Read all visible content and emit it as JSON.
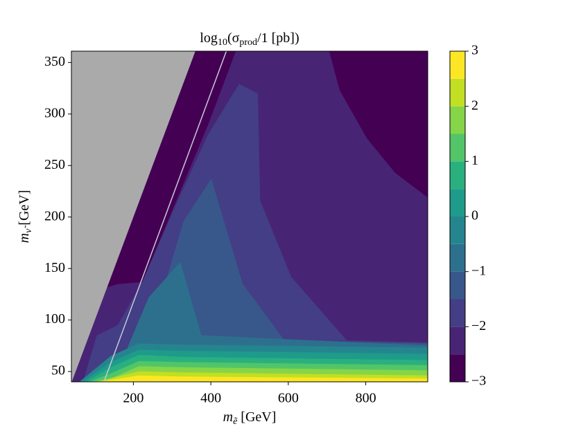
{
  "chart_data": {
    "type": "contourf",
    "title_parts": [
      "log",
      "10",
      "(σ",
      "prod",
      "/1 [pb])"
    ],
    "xlabel_parts": [
      "m",
      "ẽ",
      " [GeV]"
    ],
    "ylabel_parts": [
      "m",
      "ν̃",
      " [GeV]"
    ],
    "xlim": [
      40,
      960
    ],
    "ylim": [
      40,
      361
    ],
    "xticks": [
      200,
      400,
      600,
      800
    ],
    "yticks": [
      50,
      100,
      150,
      200,
      250,
      300,
      350
    ],
    "levels": [
      -3,
      -2.5,
      -2,
      -1.5,
      -1,
      -0.5,
      0,
      0.5,
      1,
      1.5,
      2,
      2.5,
      3
    ],
    "colors": [
      "#440154",
      "#482475",
      "#433e85",
      "#38588c",
      "#2d708e",
      "#25858e",
      "#1e9b8a",
      "#2ab07f",
      "#52c569",
      "#86d549",
      "#c2df23",
      "#fde725"
    ],
    "cticks": [
      {
        "value": -3,
        "label": "−3"
      },
      {
        "value": -2,
        "label": "−2"
      },
      {
        "value": -1,
        "label": "−1"
      },
      0,
      1,
      2,
      3
    ],
    "regions": [
      {
        "range": [
          -2.5,
          -2
        ],
        "points": [
          [
            41,
            40
          ],
          [
            360,
            361
          ],
          [
            960,
            361
          ],
          [
            960,
            40
          ]
        ]
      },
      {
        "range": [
          -3,
          -2.5
        ],
        "points": [
          [
            360,
            361
          ],
          [
            464,
            361
          ],
          [
            393,
            290
          ],
          [
            303,
            209
          ],
          [
            223,
            137
          ],
          [
            160,
            135
          ],
          [
            133,
            132
          ]
        ]
      },
      {
        "range": [
          -3,
          -2.5
        ],
        "points": [
          [
            706,
            361
          ],
          [
            960,
            361
          ],
          [
            960,
            219
          ],
          [
            876,
            243
          ],
          [
            804,
            276
          ],
          [
            733,
            323
          ]
        ]
      },
      {
        "range": [
          -2,
          -1.5
        ],
        "points": [
          [
            473,
            329
          ],
          [
            521,
            320
          ],
          [
            527,
            216
          ],
          [
            607,
            142
          ],
          [
            751,
            80
          ],
          [
            960,
            78
          ],
          [
            960,
            40
          ],
          [
            70,
            40
          ],
          [
            106,
            85
          ],
          [
            160,
            95
          ],
          [
            223,
            137
          ],
          [
            303,
            206
          ],
          [
            393,
            280
          ]
        ]
      },
      {
        "range": [
          -1.5,
          -1
        ],
        "points": [
          [
            205,
            78
          ],
          [
            285,
            139
          ],
          [
            330,
            196
          ],
          [
            401,
            237
          ],
          [
            428,
            203
          ],
          [
            482,
            135
          ],
          [
            590,
            80
          ],
          [
            960,
            77
          ],
          [
            960,
            40
          ],
          [
            178,
            40
          ]
        ]
      },
      {
        "range": [
          -1,
          -0.5
        ],
        "points": [
          [
            187,
            75
          ],
          [
            240,
            122
          ],
          [
            321,
            156
          ],
          [
            375,
            85
          ],
          [
            960,
            75
          ],
          [
            960,
            40
          ],
          [
            160,
            40
          ]
        ]
      },
      {
        "range": [
          -0.5,
          0
        ],
        "points": [
          [
            61,
            40
          ],
          [
            142,
            65
          ],
          [
            214,
            77
          ],
          [
            321,
            76
          ],
          [
            960,
            73
          ],
          [
            960,
            40
          ]
        ]
      },
      {
        "range": [
          0,
          0.5
        ],
        "points": [
          [
            70,
            40
          ],
          [
            142,
            59
          ],
          [
            214,
            71
          ],
          [
            321,
            70
          ],
          [
            960,
            67
          ],
          [
            960,
            40
          ]
        ]
      },
      {
        "range": [
          0.5,
          1
        ],
        "points": [
          [
            79,
            40
          ],
          [
            142,
            54
          ],
          [
            214,
            66
          ],
          [
            321,
            64
          ],
          [
            960,
            61
          ],
          [
            960,
            40
          ]
        ]
      },
      {
        "range": [
          1,
          1.5
        ],
        "points": [
          [
            88,
            40
          ],
          [
            142,
            48
          ],
          [
            214,
            60
          ],
          [
            321,
            59
          ],
          [
            960,
            56
          ],
          [
            960,
            40
          ]
        ]
      },
      {
        "range": [
          1.5,
          2
        ],
        "points": [
          [
            97,
            40
          ],
          [
            142,
            43
          ],
          [
            214,
            55
          ],
          [
            321,
            54
          ],
          [
            960,
            51
          ],
          [
            960,
            40
          ]
        ]
      },
      {
        "range": [
          2,
          2.5
        ],
        "points": [
          [
            106,
            40
          ],
          [
            214,
            50
          ],
          [
            321,
            49
          ],
          [
            960,
            46
          ],
          [
            960,
            40
          ]
        ]
      },
      {
        "range": [
          2.5,
          3
        ],
        "points": [
          [
            115,
            40
          ],
          [
            214,
            46
          ],
          [
            321,
            45
          ],
          [
            960,
            43
          ],
          [
            960,
            40
          ]
        ]
      }
    ],
    "excluded": {
      "color": "#aaaaaa",
      "points": [
        [
          40,
          40
        ],
        [
          41,
          40
        ],
        [
          360,
          361
        ],
        [
          40,
          361
        ]
      ]
    },
    "line": {
      "color": "#c8c8d8",
      "points": [
        [
          124,
          40
        ],
        [
          440,
          361
        ]
      ]
    }
  }
}
